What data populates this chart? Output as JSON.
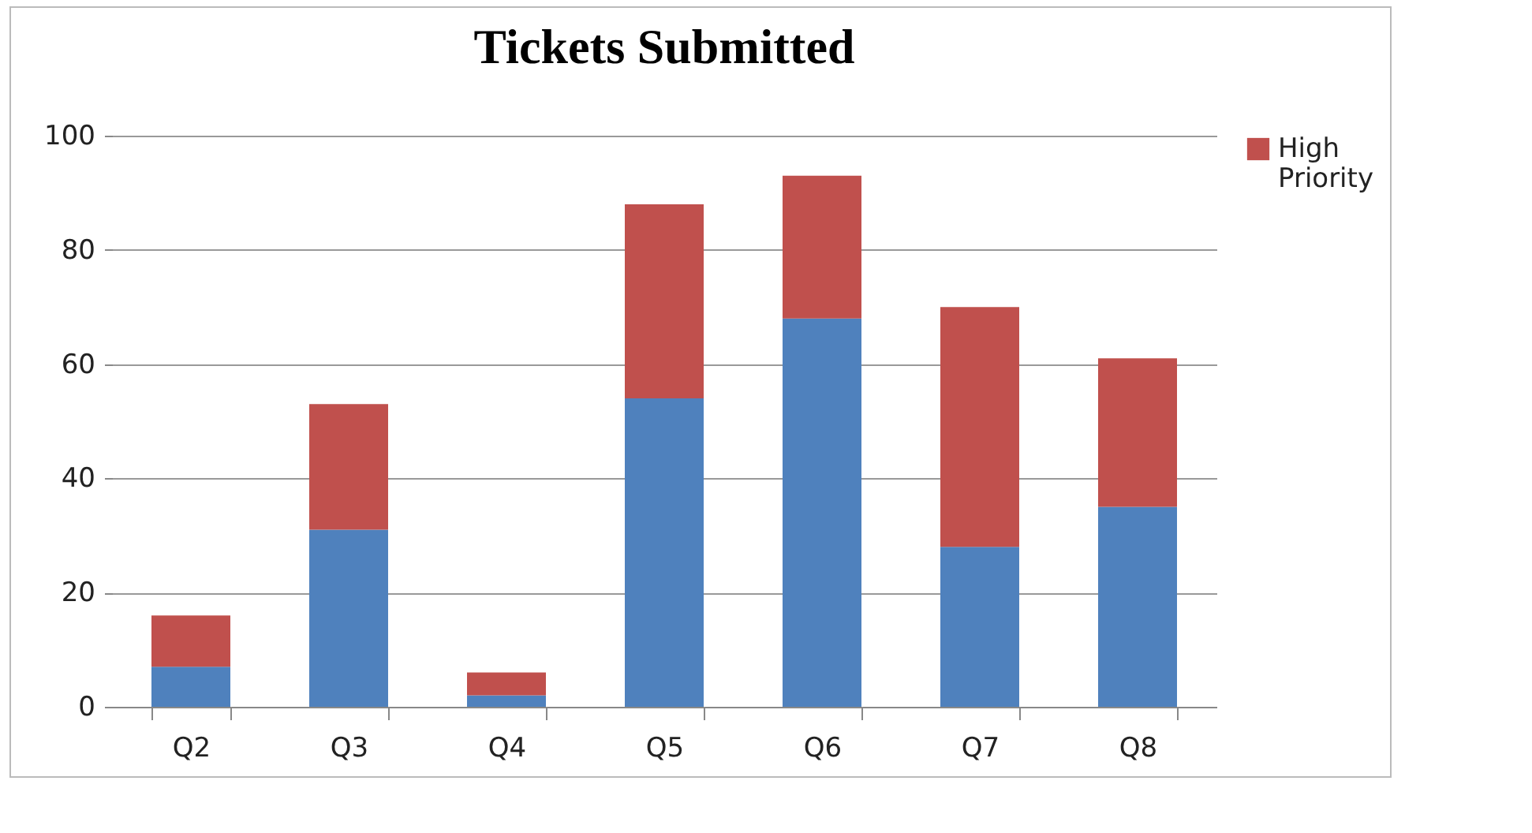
{
  "chart_data": {
    "type": "bar",
    "title": "Tickets Submitted",
    "categories": [
      "Q2",
      "Q3",
      "Q4",
      "Q5",
      "Q6",
      "Q7",
      "Q8"
    ],
    "series": [
      {
        "color": "#4f81bd",
        "values": [
          7,
          31,
          2,
          54,
          68,
          28,
          35
        ]
      },
      {
        "name": "High Priority",
        "color": "#c0504d",
        "values": [
          9,
          22,
          4,
          34,
          25,
          42,
          26
        ]
      }
    ],
    "stacked": true,
    "ylim": [
      0,
      100
    ],
    "yticks": [
      0,
      20,
      40,
      60,
      80,
      100
    ],
    "grid": "y",
    "legend": "right"
  }
}
